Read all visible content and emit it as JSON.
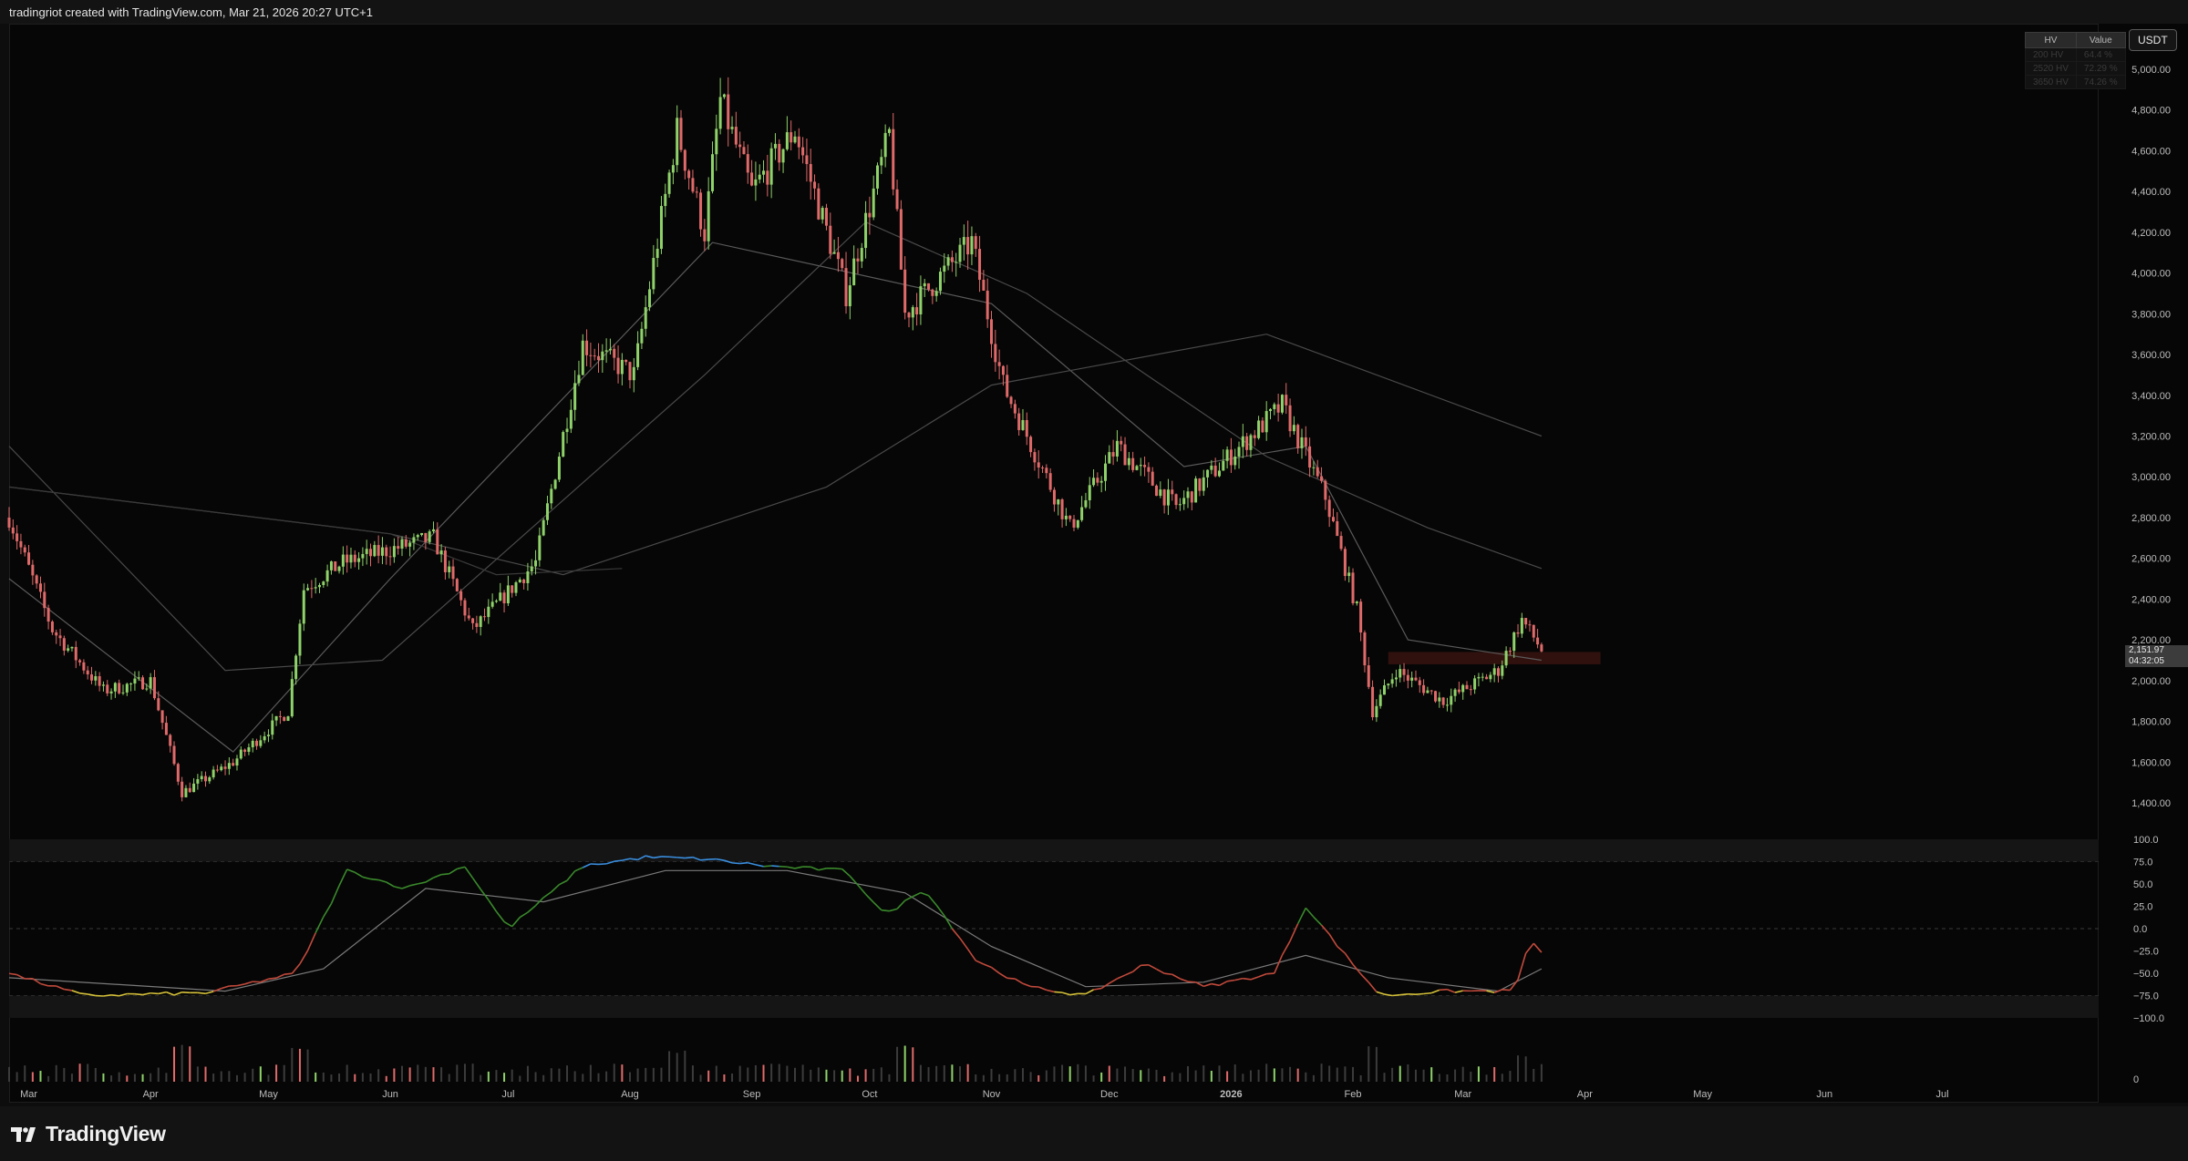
{
  "header": {
    "text": "tradingriot created with TradingView.com, Mar 21, 2026 20:27 UTC+1"
  },
  "currency": "USDT",
  "hv_table": {
    "headers": [
      "HV",
      "Value"
    ],
    "rows": [
      {
        "label": "200 HV",
        "value": "64.4 %"
      },
      {
        "label": "2520 HV",
        "value": "72.29 %"
      },
      {
        "label": "3650 HV",
        "value": "74.26 %"
      }
    ]
  },
  "last_price": {
    "price": "2,151.97",
    "countdown": "04:32:05"
  },
  "footer": {
    "brand": "TradingView"
  },
  "colors": {
    "up": "#8fd26a",
    "down": "#e06a6a",
    "osc_red": "#c24a3c",
    "osc_green": "#3a8a2c",
    "osc_blue": "#3a8fe0",
    "osc_yellow": "#d6c23a",
    "zone": "#3a1410"
  },
  "chart_data": [
    {
      "type": "candlestick",
      "title": "",
      "x_ticks": [
        "Mar",
        "Apr",
        "May",
        "Jun",
        "Jul",
        "Aug",
        "Sep",
        "Oct",
        "Nov",
        "Dec",
        "2026",
        "Feb",
        "Mar",
        "Apr",
        "May",
        "Jun",
        "Jul"
      ],
      "y_ticks": [
        "5,000.00",
        "4,800.00",
        "4,600.00",
        "4,400.00",
        "4,200.00",
        "4,000.00",
        "3,800.00",
        "3,600.00",
        "3,400.00",
        "3,200.00",
        "3,000.00",
        "2,800.00",
        "2,600.00",
        "2,400.00",
        "2,200.00",
        "2,000.00",
        "1,800.00",
        "1,600.00",
        "1,400.00"
      ],
      "ylim": [
        1300,
        5270
      ],
      "grid": false,
      "price_anchors": [
        [
          "2025-02-24",
          2800
        ],
        [
          "2025-03-07",
          2250
        ],
        [
          "2025-03-20",
          1950
        ],
        [
          "2025-04-01",
          2000
        ],
        [
          "2025-04-09",
          1450
        ],
        [
          "2025-04-22",
          1600
        ],
        [
          "2025-05-06",
          1850
        ],
        [
          "2025-05-10",
          2450
        ],
        [
          "2025-05-20",
          2580
        ],
        [
          "2025-06-12",
          2700
        ],
        [
          "2025-06-22",
          2250
        ],
        [
          "2025-07-08",
          2580
        ],
        [
          "2025-07-20",
          3650
        ],
        [
          "2025-08-02",
          3500
        ],
        [
          "2025-08-13",
          4700
        ],
        [
          "2025-08-20",
          4200
        ],
        [
          "2025-08-24",
          4850
        ],
        [
          "2025-09-01",
          4400
        ],
        [
          "2025-09-12",
          4700
        ],
        [
          "2025-09-25",
          3900
        ],
        [
          "2025-10-06",
          4680
        ],
        [
          "2025-10-10",
          3800
        ],
        [
          "2025-10-27",
          4150
        ],
        [
          "2025-11-04",
          3450
        ],
        [
          "2025-11-21",
          2750
        ],
        [
          "2025-12-03",
          3150
        ],
        [
          "2025-12-18",
          2850
        ],
        [
          "2026-01-06",
          3200
        ],
        [
          "2026-01-14",
          3350
        ],
        [
          "2026-01-25",
          2900
        ],
        [
          "2026-02-02",
          2350
        ],
        [
          "2026-02-06",
          1850
        ],
        [
          "2026-02-12",
          2050
        ],
        [
          "2026-02-24",
          1900
        ],
        [
          "2026-03-10",
          2050
        ],
        [
          "2026-03-16",
          2300
        ],
        [
          "2026-03-21",
          2152
        ]
      ],
      "moving_averages": [
        {
          "name": "",
          "points": [
            [
              "2025-02-24",
              2500
            ],
            [
              "2025-04-22",
              1650
            ],
            [
              "2025-06-01",
              2500
            ],
            [
              "2025-08-22",
              4150
            ],
            [
              "2025-11-01",
              3850
            ],
            [
              "2025-12-20",
              3050
            ],
            [
              "2026-01-20",
              3150
            ],
            [
              "2026-02-15",
              2200
            ],
            [
              "2026-03-21",
              2100
            ]
          ]
        },
        {
          "name": "",
          "points": [
            [
              "2025-02-24",
              3150
            ],
            [
              "2025-04-20",
              2050
            ],
            [
              "2025-05-30",
              2100
            ],
            [
              "2025-08-20",
              3500
            ],
            [
              "2025-09-30",
              4250
            ],
            [
              "2025-11-10",
              3900
            ],
            [
              "2026-01-10",
              3100
            ],
            [
              "2026-02-20",
              2750
            ],
            [
              "2026-03-21",
              2550
            ]
          ]
        },
        {
          "name": "",
          "points": [
            [
              "2025-02-24",
              2950
            ],
            [
              "2025-06-01",
              2720
            ],
            [
              "2025-07-15",
              2520
            ],
            [
              "2025-09-20",
              2950
            ],
            [
              "2025-11-01",
              3450
            ],
            [
              "2026-01-10",
              3700
            ],
            [
              "2026-03-21",
              3200
            ]
          ]
        },
        {
          "name": "",
          "points": [
            [
              "2025-02-24",
              2950
            ],
            [
              "2025-06-01",
              2720
            ],
            [
              "2025-06-28",
              2520
            ],
            [
              "2025-07-30",
              2550
            ]
          ]
        }
      ],
      "zone": {
        "from": "2026-02-10",
        "to": "2026-04-05",
        "low": 2080,
        "high": 2140
      }
    },
    {
      "type": "line",
      "title": "",
      "y_ticks": [
        "100.0",
        "75.0",
        "50.0",
        "25.0",
        "0.0",
        "−25.0",
        "−50.0",
        "−75.0",
        "−100.0"
      ],
      "ylim": [
        -100,
        100
      ],
      "bands": [
        75,
        -75
      ],
      "series": [
        {
          "name": "",
          "points": [
            [
              "2025-02-24",
              -50
            ],
            [
              "2025-03-15",
              -75
            ],
            [
              "2025-04-15",
              -72
            ],
            [
              "2025-05-08",
              -50
            ],
            [
              "2025-05-21",
              65
            ],
            [
              "2025-06-05",
              45
            ],
            [
              "2025-06-20",
              70
            ],
            [
              "2025-07-01",
              0
            ],
            [
              "2025-07-20",
              70
            ],
            [
              "2025-08-05",
              80
            ],
            [
              "2025-08-20",
              78
            ],
            [
              "2025-09-05",
              70
            ],
            [
              "2025-09-25",
              65
            ],
            [
              "2025-10-05",
              15
            ],
            [
              "2025-10-15",
              45
            ],
            [
              "2025-10-28",
              -35
            ],
            [
              "2025-11-10",
              -65
            ],
            [
              "2025-11-25",
              -75
            ],
            [
              "2025-12-10",
              -40
            ],
            [
              "2025-12-25",
              -65
            ],
            [
              "2026-01-12",
              -50
            ],
            [
              "2026-01-20",
              25
            ],
            [
              "2026-02-01",
              -40
            ],
            [
              "2026-02-08",
              -75
            ],
            [
              "2026-02-25",
              -70
            ],
            [
              "2026-03-14",
              -70
            ],
            [
              "2026-03-18",
              -15
            ],
            [
              "2026-03-21",
              -25
            ]
          ]
        },
        {
          "name": "",
          "points": [
            [
              "2025-02-24",
              -55
            ],
            [
              "2025-04-20",
              -70
            ],
            [
              "2025-05-15",
              -45
            ],
            [
              "2025-06-10",
              45
            ],
            [
              "2025-07-10",
              30
            ],
            [
              "2025-08-10",
              65
            ],
            [
              "2025-09-10",
              65
            ],
            [
              "2025-10-10",
              40
            ],
            [
              "2025-11-01",
              -20
            ],
            [
              "2025-11-25",
              -65
            ],
            [
              "2025-12-25",
              -60
            ],
            [
              "2026-01-20",
              -30
            ],
            [
              "2026-02-10",
              -55
            ],
            [
              "2026-03-10",
              -70
            ],
            [
              "2026-03-21",
              -45
            ]
          ]
        }
      ]
    },
    {
      "type": "bar",
      "title": "",
      "y_ticks": [
        "0"
      ],
      "ylim": [
        0,
        1
      ],
      "note": "volume histogram; relative heights",
      "spikes": [
        [
          "2025-04-09",
          1.0
        ],
        [
          "2025-05-09",
          0.9
        ],
        [
          "2025-08-13",
          0.8
        ],
        [
          "2025-10-10",
          0.95
        ],
        [
          "2026-02-06",
          1.0
        ],
        [
          "2026-03-16",
          0.7
        ]
      ]
    }
  ]
}
